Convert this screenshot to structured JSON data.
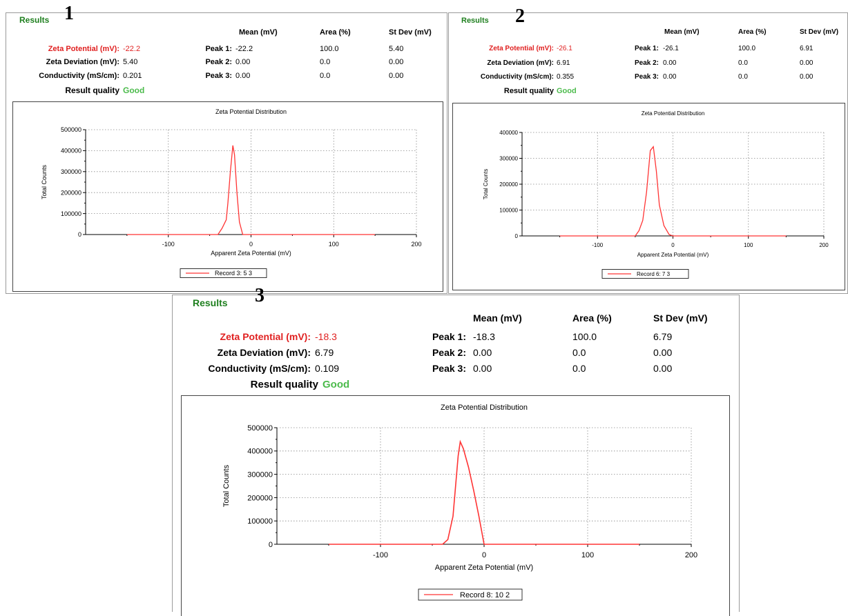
{
  "panels": [
    {
      "number": "1",
      "results_title": "Results",
      "headers": {
        "mean": "Mean (mV)",
        "area": "Area (%)",
        "stdev": "St Dev (mV)"
      },
      "zeta_potential_label": "Zeta Potential (mV):",
      "zeta_potential_value": "-22.2",
      "zeta_deviation_label": "Zeta Deviation (mV):",
      "zeta_deviation_value": "5.40",
      "conductivity_label": "Conductivity (mS/cm):",
      "conductivity_value": "0.201",
      "quality_label": "Result quality",
      "quality_value": "Good",
      "peaks": [
        {
          "label": "Peak 1:",
          "mean": "-22.2",
          "area": "100.0",
          "stdev": "5.40"
        },
        {
          "label": "Peak 2:",
          "mean": "0.00",
          "area": "0.0",
          "stdev": "0.00"
        },
        {
          "label": "Peak 3:",
          "mean": "0.00",
          "area": "0.0",
          "stdev": "0.00"
        }
      ],
      "chart_title": "Zeta Potential Distribution",
      "xlabel": "Apparent Zeta Potential (mV)",
      "ylabel": "Total Counts",
      "legend": "Record 3: 5 3",
      "line_color": "#ff3333"
    },
    {
      "number": "2",
      "results_title": "Results",
      "headers": {
        "mean": "Mean (mV)",
        "area": "Area (%)",
        "stdev": "St Dev (mV)"
      },
      "zeta_potential_label": "Zeta Potential (mV):",
      "zeta_potential_value": "-26.1",
      "zeta_deviation_label": "Zeta Deviation (mV):",
      "zeta_deviation_value": "6.91",
      "conductivity_label": "Conductivity (mS/cm):",
      "conductivity_value": "0.355",
      "quality_label": "Result quality",
      "quality_value": "Good",
      "peaks": [
        {
          "label": "Peak 1:",
          "mean": "-26.1",
          "area": "100.0",
          "stdev": "6.91"
        },
        {
          "label": "Peak 2:",
          "mean": "0.00",
          "area": "0.0",
          "stdev": "0.00"
        },
        {
          "label": "Peak 3:",
          "mean": "0.00",
          "area": "0.0",
          "stdev": "0.00"
        }
      ],
      "chart_title": "Zeta Potential Distribution",
      "xlabel": "Apparent Zeta Potential (mV)",
      "ylabel": "Total Counts",
      "legend": "Record 6: 7 3",
      "line_color": "#ff3333"
    },
    {
      "number": "3",
      "results_title": "Results",
      "headers": {
        "mean": "Mean (mV)",
        "area": "Area (%)",
        "stdev": "St Dev (mV)"
      },
      "zeta_potential_label": "Zeta Potential (mV):",
      "zeta_potential_value": "-18.3",
      "zeta_deviation_label": "Zeta Deviation (mV):",
      "zeta_deviation_value": "6.79",
      "conductivity_label": "Conductivity (mS/cm):",
      "conductivity_value": "0.109",
      "quality_label": "Result quality",
      "quality_value": "Good",
      "peaks": [
        {
          "label": "Peak 1:",
          "mean": "-18.3",
          "area": "100.0",
          "stdev": "6.79"
        },
        {
          "label": "Peak 2:",
          "mean": "0.00",
          "area": "0.0",
          "stdev": "0.00"
        },
        {
          "label": "Peak 3:",
          "mean": "0.00",
          "area": "0.0",
          "stdev": "0.00"
        }
      ],
      "chart_title": "Zeta Potential Distribution",
      "xlabel": "Apparent Zeta Potential (mV)",
      "ylabel": "Total Counts",
      "legend": "Record 8: 10 2",
      "line_color": "#ff3333"
    }
  ],
  "chart_data": [
    {
      "type": "line",
      "title": "Zeta Potential Distribution",
      "xlabel": "Apparent Zeta Potential (mV)",
      "ylabel": "Total Counts",
      "xlim": [
        -200,
        200
      ],
      "ylim": [
        0,
        500000
      ],
      "xticks": [
        -100,
        0,
        100,
        200
      ],
      "yticks": [
        0,
        100000,
        200000,
        300000,
        400000,
        500000
      ],
      "grid": true,
      "legend_position": "bottom",
      "series": [
        {
          "name": "Record 3: 5 3",
          "x": [
            -150,
            -40,
            -35,
            -30,
            -28,
            -25,
            -22,
            -20,
            -17,
            -14,
            -10,
            0,
            150
          ],
          "y": [
            0,
            0,
            30000,
            70000,
            150000,
            300000,
            425000,
            380000,
            200000,
            60000,
            0,
            0,
            0
          ]
        }
      ]
    },
    {
      "type": "line",
      "title": "Zeta Potential Distribution",
      "xlabel": "Apparent Zeta Potential (mV)",
      "ylabel": "Total Counts",
      "xlim": [
        -200,
        200
      ],
      "ylim": [
        0,
        400000
      ],
      "xticks": [
        -100,
        0,
        100,
        200
      ],
      "yticks": [
        0,
        100000,
        200000,
        300000,
        400000
      ],
      "grid": true,
      "legend_position": "bottom",
      "series": [
        {
          "name": "Record 6: 7 3",
          "x": [
            -150,
            -50,
            -45,
            -40,
            -35,
            -30,
            -26,
            -22,
            -18,
            -12,
            -5,
            0,
            150
          ],
          "y": [
            0,
            0,
            20000,
            60000,
            170000,
            330000,
            345000,
            250000,
            120000,
            40000,
            5000,
            0,
            0
          ]
        }
      ]
    },
    {
      "type": "line",
      "title": "Zeta Potential Distribution",
      "xlabel": "Apparent Zeta Potential (mV)",
      "ylabel": "Total Counts",
      "xlim": [
        -200,
        200
      ],
      "ylim": [
        0,
        500000
      ],
      "xticks": [
        -100,
        0,
        100,
        200
      ],
      "yticks": [
        0,
        100000,
        200000,
        300000,
        400000,
        500000
      ],
      "grid": true,
      "legend_position": "bottom",
      "series": [
        {
          "name": "Record 8: 10 2",
          "x": [
            -150,
            -40,
            -35,
            -30,
            -25,
            -23,
            -20,
            -15,
            -10,
            -5,
            0,
            150
          ],
          "y": [
            0,
            0,
            20000,
            120000,
            380000,
            440000,
            410000,
            330000,
            230000,
            120000,
            0,
            0
          ]
        }
      ]
    }
  ]
}
